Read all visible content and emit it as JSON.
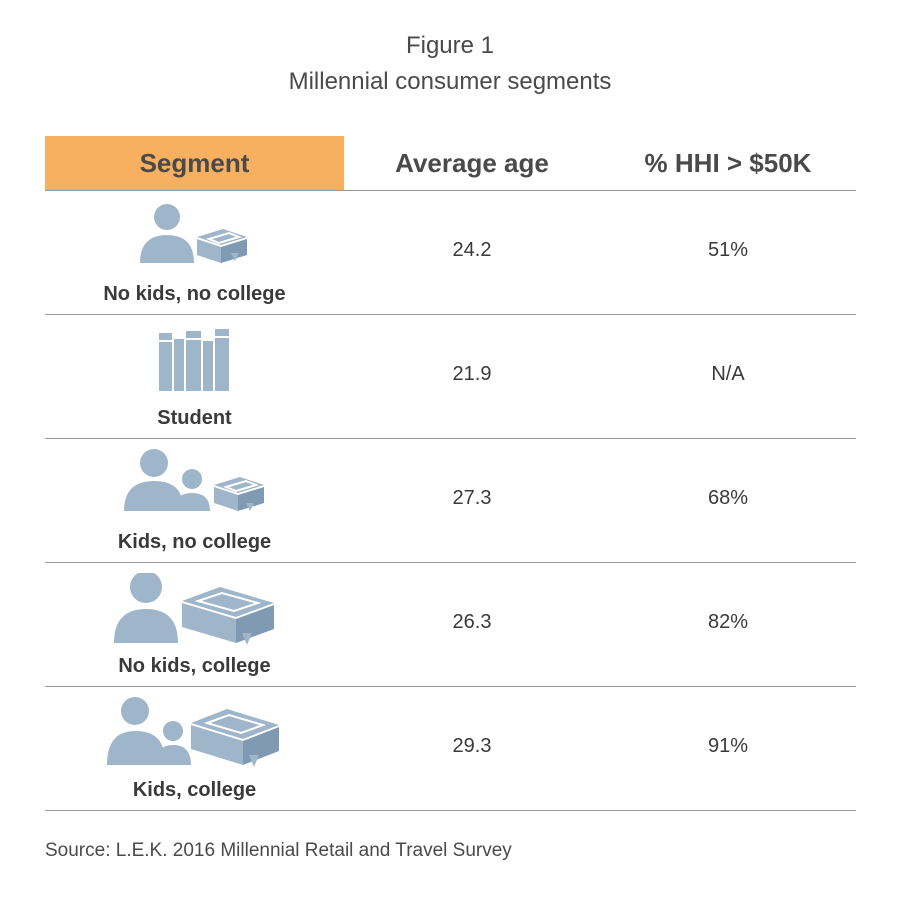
{
  "figure": {
    "title": "Figure 1",
    "subtitle": "Millennial consumer segments"
  },
  "table": {
    "headers": {
      "segment": "Segment",
      "average_age": "Average age",
      "hhi": "% HHI > $50K"
    },
    "header_color": "#f6b060",
    "icon_color": "#9fb6ca",
    "rows": [
      {
        "segment": "No kids, no college",
        "icon": "person-book-icon",
        "average_age": "24.2",
        "hhi": "51%"
      },
      {
        "segment": "Student",
        "icon": "books-icon",
        "average_age": "21.9",
        "hhi": "N/A"
      },
      {
        "segment": "Kids, no college",
        "icon": "family-book-icon",
        "average_age": "27.3",
        "hhi": "68%"
      },
      {
        "segment": "No kids, college",
        "icon": "person-large-book-icon",
        "average_age": "26.3",
        "hhi": "82%"
      },
      {
        "segment": "Kids, college",
        "icon": "family-large-book-icon",
        "average_age": "29.3",
        "hhi": "91%"
      }
    ]
  },
  "source": "Source: L.E.K. 2016 Millennial Retail and Travel Survey"
}
